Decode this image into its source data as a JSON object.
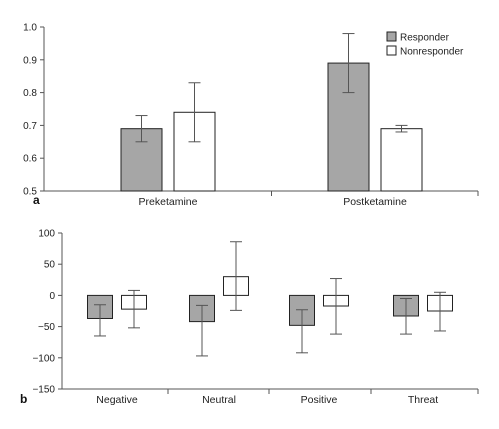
{
  "chart_data": [
    {
      "type": "bar",
      "panel_label": "a",
      "categories": [
        "Preketamine",
        "Postketamine"
      ],
      "ylim": [
        0.5,
        1.0
      ],
      "yticks": [
        "0.5",
        "0.6",
        "0.7",
        "0.8",
        "0.9",
        "1.0"
      ],
      "ytick_values": [
        0.5,
        0.6,
        0.7,
        0.8,
        0.9,
        1.0
      ],
      "legend_position": "top-right",
      "series": [
        {
          "name": "Responder",
          "color": "#a6a6a6",
          "values": [
            0.69,
            0.89
          ],
          "err_low": [
            0.65,
            0.8
          ],
          "err_high": [
            0.73,
            0.98
          ]
        },
        {
          "name": "Nonresponder",
          "color": "#ffffff",
          "values": [
            0.74,
            0.69
          ],
          "err_low": [
            0.65,
            0.68
          ],
          "err_high": [
            0.83,
            0.7
          ]
        }
      ]
    },
    {
      "type": "bar",
      "panel_label": "b",
      "categories": [
        "Negative",
        "Neutral",
        "Positive",
        "Threat"
      ],
      "ylim": [
        -150,
        100
      ],
      "yticks": [
        "100",
        "50",
        "0",
        "−50",
        "−100",
        "−150"
      ],
      "ytick_values": [
        100,
        50,
        0,
        -50,
        -100,
        -150
      ],
      "series": [
        {
          "color": "#a6a6a6",
          "values": [
            -37,
            -42,
            -48,
            -33
          ],
          "err_low": [
            -65,
            -97,
            -92,
            -62
          ],
          "err_high": [
            -15,
            -16,
            -23,
            -5
          ]
        },
        {
          "color": "#ffffff",
          "values": [
            -22,
            30,
            -17,
            -25
          ],
          "err_low": [
            -52,
            -24,
            -62,
            -57
          ],
          "err_high": [
            8,
            86,
            27,
            5
          ]
        }
      ]
    }
  ]
}
